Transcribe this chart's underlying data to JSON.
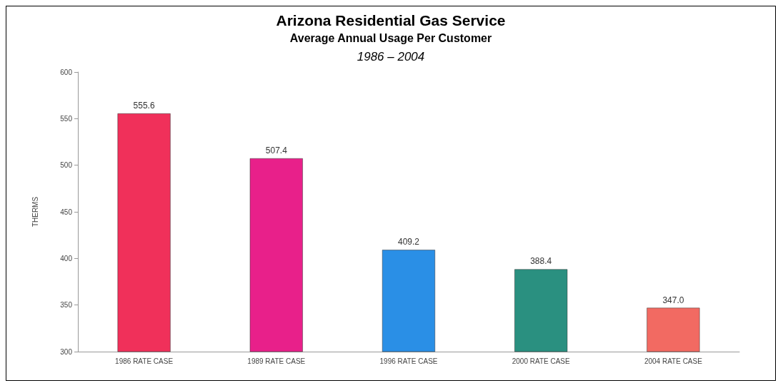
{
  "chart_data": {
    "type": "bar",
    "title": "Arizona Residential Gas Service",
    "subtitle": "Average Annual Usage Per Customer",
    "annotations": [
      "1986 – 2004"
    ],
    "ylabel": "THERMS",
    "categories": [
      "1986 RATE CASE",
      "1989 RATE CASE",
      "1996 RATE CASE",
      "2000 RATE CASE",
      "2004 RATE CASE"
    ],
    "values": [
      555.6,
      507.4,
      409.2,
      388.4,
      347.0
    ],
    "colors": [
      "#f0305a",
      "#e8208a",
      "#2a8fe6",
      "#2a9080",
      "#f26a62"
    ],
    "value_labels": [
      "555.6",
      "507.4",
      "409.2",
      "388.4",
      "347.0"
    ],
    "ylim": [
      300,
      600
    ],
    "yticks": [
      300,
      350,
      400,
      450,
      500,
      550,
      600
    ],
    "grid": false
  }
}
